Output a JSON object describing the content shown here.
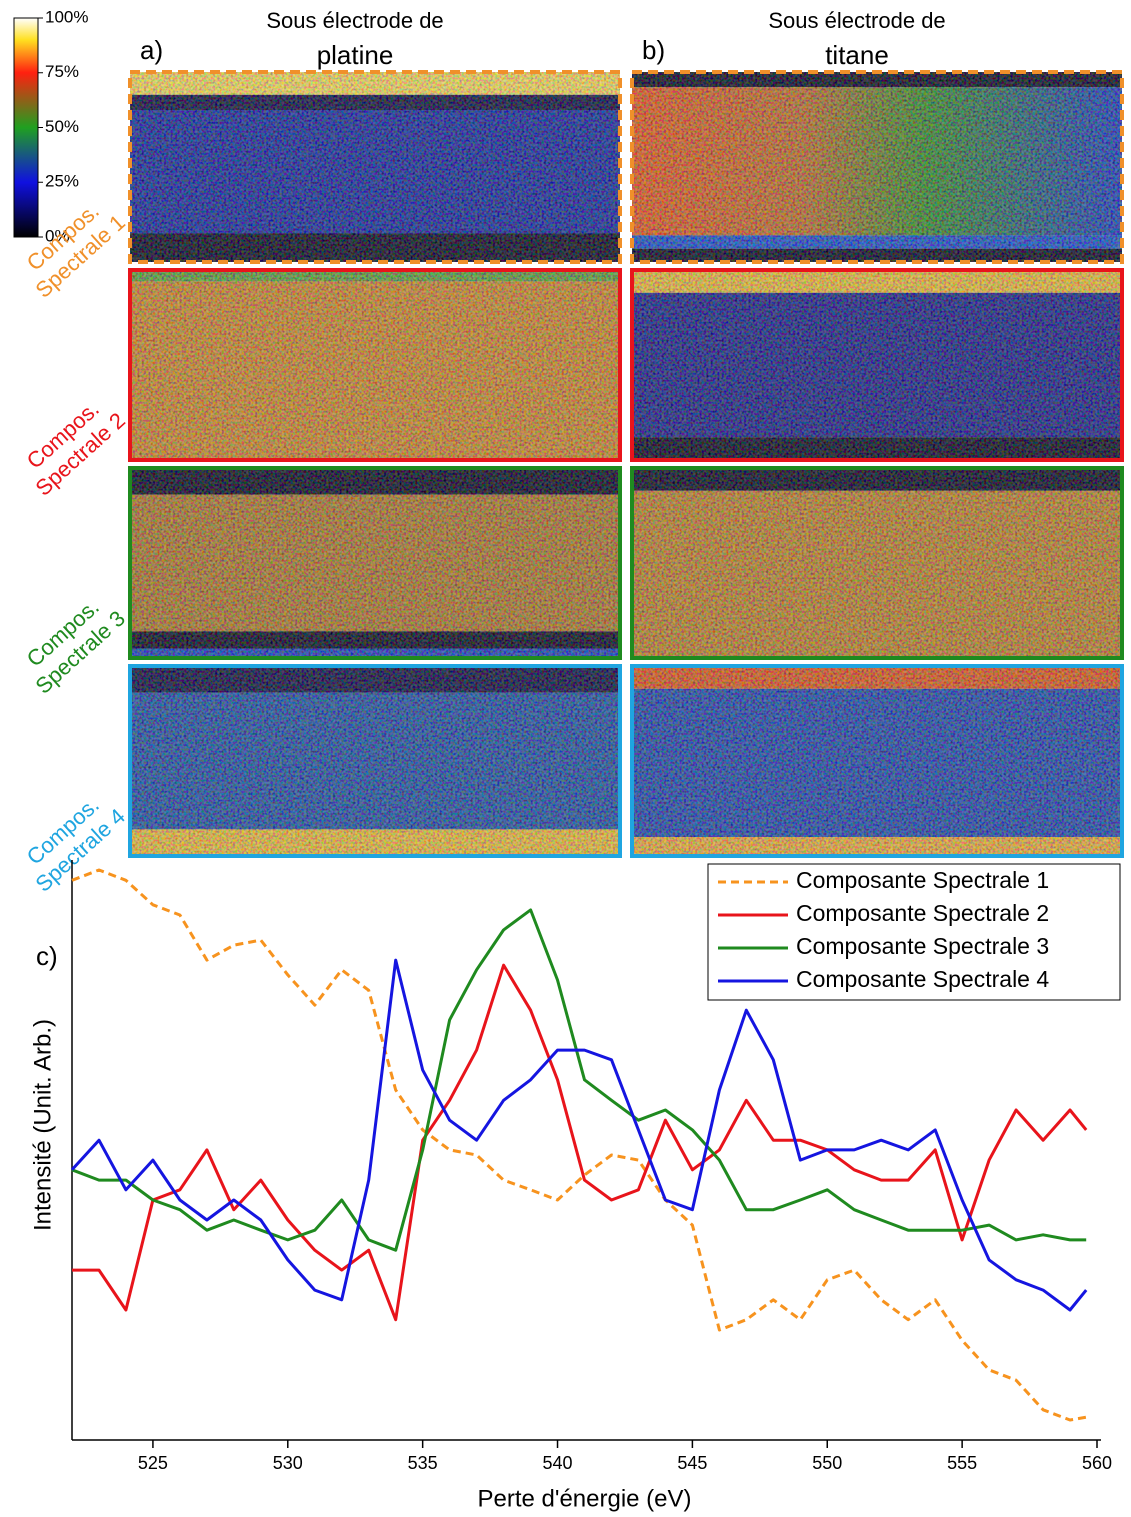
{
  "colorbar": {
    "ticks": [
      {
        "value": 100,
        "label": "100%"
      },
      {
        "value": 75,
        "label": "75%"
      },
      {
        "value": 50,
        "label": "50%"
      },
      {
        "value": 25,
        "label": "25%"
      },
      {
        "value": 0,
        "label": "0%"
      }
    ]
  },
  "columns": [
    {
      "label": "a)",
      "title_line1": "Sous électrode de",
      "title_line2": "platine"
    },
    {
      "label": "b)",
      "title_line1": "Sous électrode de",
      "title_line2": "titane"
    }
  ],
  "rows": [
    {
      "line1": "Compos.",
      "line2": "Spectrale 1"
    },
    {
      "line1": "Compos.",
      "line2": "Spectrale 2"
    },
    {
      "line1": "Compos.",
      "line2": "Spectrale 3"
    },
    {
      "line1": "Compos.",
      "line2": "Spectrale 4"
    }
  ],
  "chart_data": {
    "type": "line",
    "panel_label": "c)",
    "xlabel": "Perte d'énergie (eV)",
    "ylabel": "Intensité (Unit. Arb.)",
    "xlim": [
      522,
      560
    ],
    "xticks": [
      525,
      530,
      535,
      540,
      545,
      550,
      555,
      560
    ],
    "ylim": [
      0,
      10
    ],
    "legend": "upper right",
    "x": [
      522,
      523,
      524,
      525,
      526,
      527,
      528,
      529,
      530,
      531,
      532,
      533,
      534,
      535,
      536,
      537,
      538,
      539,
      540,
      541,
      542,
      543,
      544,
      545,
      546,
      547,
      548,
      549,
      550,
      551,
      552,
      553,
      554,
      555,
      556,
      557,
      558,
      559,
      559.6
    ],
    "series": [
      {
        "name": "Composante Spectrale 1",
        "color": "#f7931e",
        "dash": "dashed",
        "values": [
          9.82,
          10.0,
          9.82,
          9.39,
          9.21,
          8.42,
          8.68,
          8.77,
          8.16,
          7.63,
          8.25,
          7.89,
          6.14,
          5.44,
          5.09,
          5.0,
          4.56,
          4.39,
          4.21,
          4.65,
          5.0,
          4.91,
          4.21,
          3.77,
          1.93,
          2.11,
          2.46,
          2.11,
          2.81,
          2.98,
          2.46,
          2.11,
          2.46,
          1.75,
          1.23,
          1.05,
          0.53,
          0.35,
          0.4
        ]
      },
      {
        "name": "Composante Spectrale 2",
        "color": "#e8141b",
        "dash": "solid",
        "values": [
          2.98,
          2.98,
          2.28,
          4.21,
          4.39,
          5.09,
          4.04,
          4.56,
          3.86,
          3.33,
          2.98,
          3.33,
          2.11,
          5.26,
          5.96,
          6.84,
          8.33,
          7.54,
          6.32,
          4.56,
          4.21,
          4.39,
          5.61,
          4.74,
          5.09,
          5.96,
          5.26,
          5.26,
          5.09,
          4.74,
          4.56,
          4.56,
          5.09,
          3.51,
          4.91,
          5.79,
          5.26,
          5.79,
          5.44
        ]
      },
      {
        "name": "Composante Spectrale 3",
        "color": "#1f8a1f",
        "dash": "solid",
        "values": [
          4.74,
          4.56,
          4.56,
          4.21,
          4.04,
          3.68,
          3.86,
          3.68,
          3.51,
          3.68,
          4.21,
          3.51,
          3.33,
          5.09,
          7.37,
          8.25,
          8.95,
          9.3,
          8.07,
          6.32,
          5.96,
          5.61,
          5.79,
          5.44,
          4.91,
          4.04,
          4.04,
          4.21,
          4.39,
          4.04,
          3.86,
          3.68,
          3.68,
          3.68,
          3.77,
          3.51,
          3.6,
          3.51,
          3.51
        ]
      },
      {
        "name": "Composante Spectrale 4",
        "color": "#1515e0",
        "dash": "solid",
        "values": [
          4.74,
          5.26,
          4.39,
          4.91,
          4.21,
          3.86,
          4.21,
          3.86,
          3.16,
          2.63,
          2.46,
          4.56,
          8.42,
          6.49,
          5.61,
          5.26,
          5.96,
          6.32,
          6.84,
          6.84,
          6.67,
          5.44,
          4.21,
          4.04,
          6.14,
          7.54,
          6.67,
          4.91,
          5.09,
          5.09,
          5.26,
          5.09,
          5.44,
          4.21,
          3.16,
          2.81,
          2.63,
          2.28,
          2.63
        ]
      }
    ]
  }
}
